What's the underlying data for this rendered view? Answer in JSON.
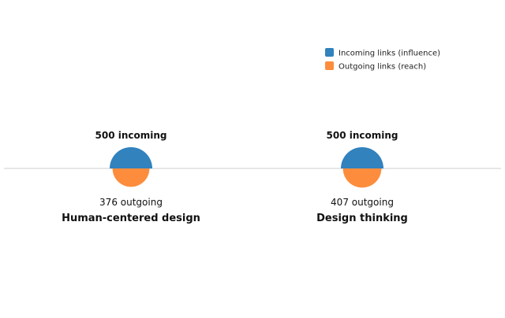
{
  "chart_data": {
    "type": "semicircle-comparison",
    "title": "",
    "legend": {
      "position": "top-right",
      "items": [
        {
          "label": "Incoming links (influence)",
          "color": "#3182bd"
        },
        {
          "label": "Outgoing links (reach)",
          "color": "#fd8d3c"
        }
      ]
    },
    "series": [
      {
        "name": "Incoming links (influence)",
        "color": "#3182bd",
        "values": [
          500,
          500
        ],
        "suffix": "incoming"
      },
      {
        "name": "Outgoing links (reach)",
        "color": "#fd8d3c",
        "values": [
          376,
          407
        ],
        "suffix": "outgoing"
      }
    ],
    "categories": [
      "Human-centered design",
      "Design thinking"
    ],
    "grid": false
  }
}
